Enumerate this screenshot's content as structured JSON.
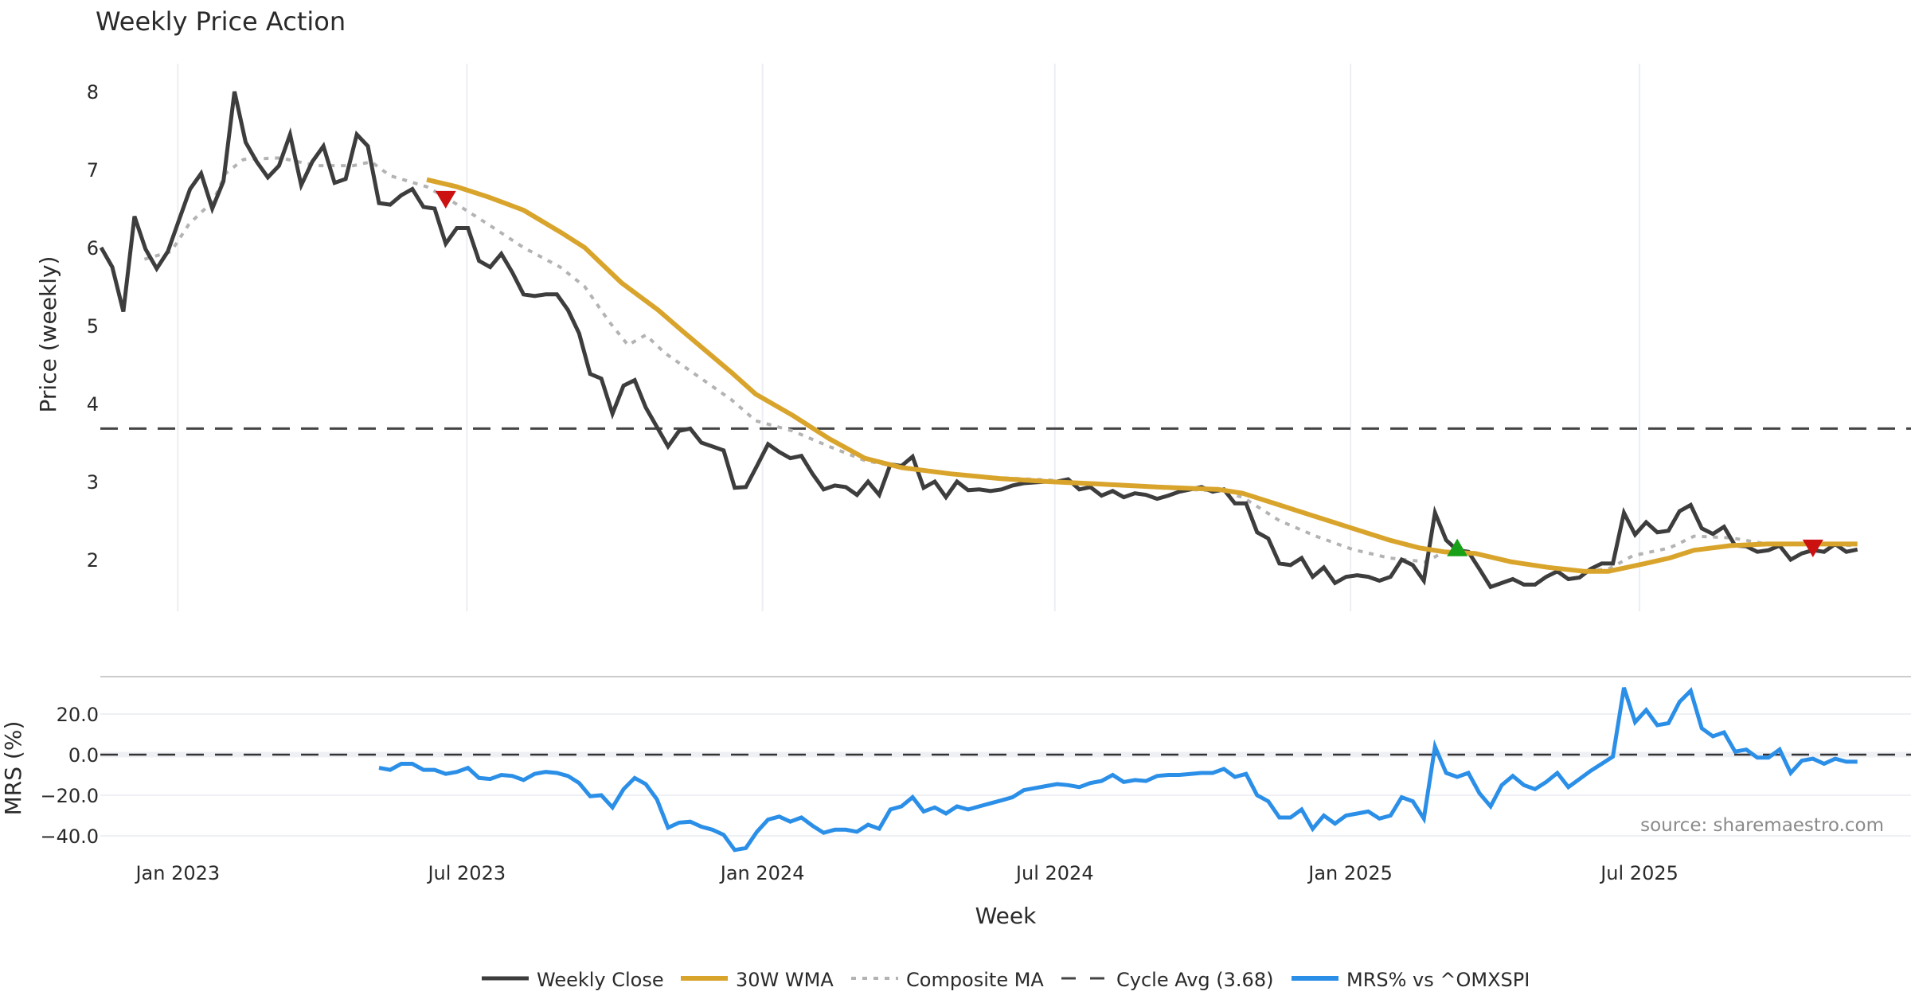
{
  "chart_data": [
    {
      "type": "line",
      "title": "Weekly Price Action",
      "ylabel": "Price (weekly)",
      "xlabel": "Week",
      "ylim": [
        1.3,
        8.5
      ],
      "yticks": [
        "8",
        "7",
        "6",
        "5",
        "4",
        "3",
        "2"
      ],
      "ytick_values": [
        8,
        7,
        6,
        5,
        4,
        3,
        2
      ],
      "grid": "vertical",
      "x_unit": "week index from first plotted week",
      "series": [
        {
          "name": "Weekly Close",
          "color": "#3d3d3d",
          "start_week": 0,
          "values": [
            6.0,
            5.75,
            5.18,
            6.4,
            5.98,
            5.73,
            5.95,
            6.35,
            6.75,
            6.95,
            6.5,
            6.85,
            8.0,
            7.35,
            7.1,
            6.9,
            7.05,
            7.45,
            6.8,
            7.1,
            7.3,
            6.83,
            6.88,
            7.45,
            7.3,
            6.57,
            6.55,
            6.67,
            6.75,
            6.52,
            6.5,
            6.05,
            6.25,
            6.25,
            5.83,
            5.75,
            5.92,
            5.68,
            5.4,
            5.38,
            5.4,
            5.4,
            5.2,
            4.9,
            4.38,
            4.32,
            3.87,
            4.23,
            4.3,
            3.95,
            3.7,
            3.45,
            3.65,
            3.68,
            3.5,
            3.45,
            3.4,
            2.92,
            2.93,
            3.2,
            3.48,
            3.38,
            3.3,
            3.33,
            3.1,
            2.9,
            2.95,
            2.93,
            2.83,
            3.0,
            2.83,
            3.22,
            3.2,
            3.32,
            2.92,
            3.0,
            2.8,
            3.0,
            2.89,
            2.9,
            2.88,
            2.9,
            2.95,
            2.98,
            2.99,
            3.0,
            3.0,
            3.03,
            2.9,
            2.93,
            2.82,
            2.88,
            2.8,
            2.85,
            2.83,
            2.78,
            2.82,
            2.87,
            2.9,
            2.93,
            2.87,
            2.9,
            2.72,
            2.72,
            2.35,
            2.27,
            1.95,
            1.93,
            2.02,
            1.78,
            1.9,
            1.7,
            1.78,
            1.8,
            1.78,
            1.73,
            1.78,
            2.0,
            1.93,
            1.73,
            2.6,
            2.25,
            2.12,
            2.1,
            1.88,
            1.65,
            1.7,
            1.75,
            1.68,
            1.68,
            1.78,
            1.85,
            1.75,
            1.77,
            1.88,
            1.95,
            1.95,
            2.6,
            2.32,
            2.48,
            2.35,
            2.37,
            2.62,
            2.7,
            2.4,
            2.33,
            2.42,
            2.18,
            2.17,
            2.1,
            2.12,
            2.18,
            2.0,
            2.08,
            2.12,
            2.1,
            2.2,
            2.1,
            2.13
          ]
        },
        {
          "name": "30W WMA",
          "color": "#d9a42b",
          "points": [
            [
              29.3,
              6.87
            ],
            [
              32.0,
              6.78
            ],
            [
              34.8,
              6.65
            ],
            [
              38.0,
              6.48
            ],
            [
              41.3,
              6.2
            ],
            [
              43.5,
              6.0
            ],
            [
              46.8,
              5.55
            ],
            [
              50.1,
              5.2
            ],
            [
              52.3,
              4.93
            ],
            [
              56.7,
              4.4
            ],
            [
              58.9,
              4.12
            ],
            [
              62.2,
              3.85
            ],
            [
              65.5,
              3.55
            ],
            [
              68.7,
              3.3
            ],
            [
              72.0,
              3.18
            ],
            [
              76.4,
              3.1
            ],
            [
              80.8,
              3.04
            ],
            [
              85.2,
              3.0
            ],
            [
              89.6,
              2.97
            ],
            [
              95.1,
              2.93
            ],
            [
              100.5,
              2.9
            ],
            [
              102.7,
              2.85
            ],
            [
              106.0,
              2.7
            ],
            [
              109.3,
              2.55
            ],
            [
              112.6,
              2.4
            ],
            [
              115.9,
              2.25
            ],
            [
              118.6,
              2.15
            ],
            [
              120.8,
              2.1
            ],
            [
              123.6,
              2.08
            ],
            [
              126.9,
              1.97
            ],
            [
              130.2,
              1.9
            ],
            [
              133.4,
              1.85
            ],
            [
              135.6,
              1.85
            ],
            [
              138.9,
              1.95
            ],
            [
              141.1,
              2.02
            ],
            [
              143.3,
              2.12
            ],
            [
              146.6,
              2.18
            ],
            [
              149.9,
              2.2
            ],
            [
              158.0,
              2.2
            ]
          ]
        },
        {
          "name": "Composite MA",
          "color": "#b3b3b3",
          "points": [
            [
              3.9,
              5.85
            ],
            [
              6.3,
              5.95
            ],
            [
              7.9,
              6.3
            ],
            [
              10.1,
              6.6
            ],
            [
              11.2,
              6.95
            ],
            [
              12.8,
              7.13
            ],
            [
              16.1,
              7.15
            ],
            [
              19.4,
              7.05
            ],
            [
              22.7,
              7.05
            ],
            [
              24.3,
              7.1
            ],
            [
              26.0,
              6.92
            ],
            [
              29.3,
              6.78
            ],
            [
              31.5,
              6.6
            ],
            [
              34.8,
              6.3
            ],
            [
              38.0,
              6.0
            ],
            [
              41.3,
              5.75
            ],
            [
              43.5,
              5.5
            ],
            [
              45.7,
              5.05
            ],
            [
              47.4,
              4.75
            ],
            [
              49.0,
              4.88
            ],
            [
              50.7,
              4.65
            ],
            [
              53.4,
              4.38
            ],
            [
              56.7,
              4.05
            ],
            [
              58.9,
              3.78
            ],
            [
              62.2,
              3.65
            ],
            [
              65.5,
              3.45
            ],
            [
              68.7,
              3.27
            ],
            [
              72.0,
              3.18
            ],
            [
              76.4,
              3.1
            ],
            [
              80.8,
              3.05
            ],
            [
              85.2,
              3.02
            ],
            [
              89.6,
              2.97
            ],
            [
              95.1,
              2.92
            ],
            [
              100.5,
              2.88
            ],
            [
              102.7,
              2.8
            ],
            [
              106.0,
              2.5
            ],
            [
              109.3,
              2.3
            ],
            [
              112.6,
              2.13
            ],
            [
              115.9,
              2.02
            ],
            [
              119.2,
              1.97
            ],
            [
              120.8,
              2.1
            ],
            [
              122.5,
              2.12
            ],
            [
              125.8,
              2.0
            ],
            [
              129.1,
              1.92
            ],
            [
              133.4,
              1.85
            ],
            [
              135.6,
              1.88
            ],
            [
              137.8,
              2.05
            ],
            [
              141.1,
              2.15
            ],
            [
              143.3,
              2.3
            ],
            [
              146.6,
              2.28
            ],
            [
              149.9,
              2.2
            ],
            [
              153.2,
              2.2
            ],
            [
              158.0,
              2.18
            ]
          ]
        },
        {
          "name": "Cycle Avg (3.68)",
          "color": "#444444",
          "style": "dashed",
          "value": 3.68
        }
      ],
      "markers": [
        {
          "type": "sell",
          "shape": "triangle-down",
          "color": "#cc1111",
          "week": 31,
          "value": 6.62
        },
        {
          "type": "buy",
          "shape": "triangle-up",
          "color": "#18a018",
          "week": 122,
          "value": 2.15
        },
        {
          "type": "sell",
          "shape": "triangle-down",
          "color": "#cc1111",
          "week": 154,
          "value": 2.15
        }
      ]
    },
    {
      "type": "line",
      "ylabel": "MRS (%)",
      "ylim": [
        -50,
        40
      ],
      "yticks": [
        "20.0",
        "0.0",
        "−20.0",
        "−40.0"
      ],
      "ytick_values": [
        20,
        0,
        -20,
        -40
      ],
      "xticks": [
        "Jan 2023",
        "Jul 2023",
        "Jan 2024",
        "Jul 2024",
        "Jan 2025",
        "Jul 2025"
      ],
      "xtick_weeks": [
        6.9,
        32.9,
        59.5,
        85.8,
        112.4,
        138.4
      ],
      "zero_line": "dashed",
      "series": [
        {
          "name": "MRS% vs ^OMXSPI",
          "color": "#2b8fe8",
          "start_week": 25,
          "values": [
            -6.5,
            -7.5,
            -4.5,
            -4.5,
            -7.5,
            -7.5,
            -9.5,
            -8.5,
            -6.5,
            -11.5,
            -12,
            -10,
            -10.5,
            -12.5,
            -9.5,
            -8.5,
            -9,
            -10.5,
            -14,
            -20.5,
            -20,
            -26,
            -17,
            -11.5,
            -14.5,
            -22,
            -36,
            -33.5,
            -33,
            -35.5,
            -37,
            -39.5,
            -47,
            -46,
            -38,
            -32,
            -30.5,
            -33,
            -31,
            -35,
            -38.5,
            -37,
            -37,
            -38,
            -34.5,
            -36.5,
            -27,
            -25.5,
            -21,
            -28,
            -26,
            -29,
            -25.5,
            -27,
            -25.5,
            -24,
            -22.5,
            -21,
            -17.5,
            -16.5,
            -15.5,
            -14.5,
            -15,
            -16,
            -14,
            -13,
            -10,
            -13.5,
            -12.5,
            -13,
            -10.5,
            -10,
            -10,
            -9.5,
            -9,
            -9,
            -7,
            -11,
            -9.5,
            -20,
            -23,
            -31,
            -31,
            -27,
            -36.5,
            -30,
            -34,
            -30,
            -29,
            -28,
            -31.5,
            -30,
            -21,
            -23,
            -31.5,
            4,
            -9,
            -11,
            -9,
            -19,
            -25.5,
            -15,
            -10.5,
            -15,
            -17,
            -13.5,
            -9,
            -16,
            -12,
            -8,
            -4.5,
            -1,
            33,
            16,
            22,
            14.5,
            15.5,
            26,
            31.5,
            13,
            9,
            11,
            1.5,
            2.5,
            -1.5,
            -1.5,
            2.5,
            -9,
            -3,
            -2,
            -4.5,
            -2,
            -3.5,
            -3.5
          ]
        }
      ]
    }
  ],
  "title": "Weekly Price Action",
  "source": "source: sharemaestro.com",
  "legend": [
    {
      "label": "Weekly Close",
      "color": "#3d3d3d",
      "style": "solid"
    },
    {
      "label": "30W WMA",
      "color": "#d9a42b",
      "style": "solid"
    },
    {
      "label": "Composite MA",
      "color": "#b3b3b3",
      "style": "dotted"
    },
    {
      "label": "Cycle Avg (3.68)",
      "color": "#444444",
      "style": "dashed"
    },
    {
      "label": "MRS% vs ^OMXSPI",
      "color": "#2b8fe8",
      "style": "solid"
    }
  ]
}
